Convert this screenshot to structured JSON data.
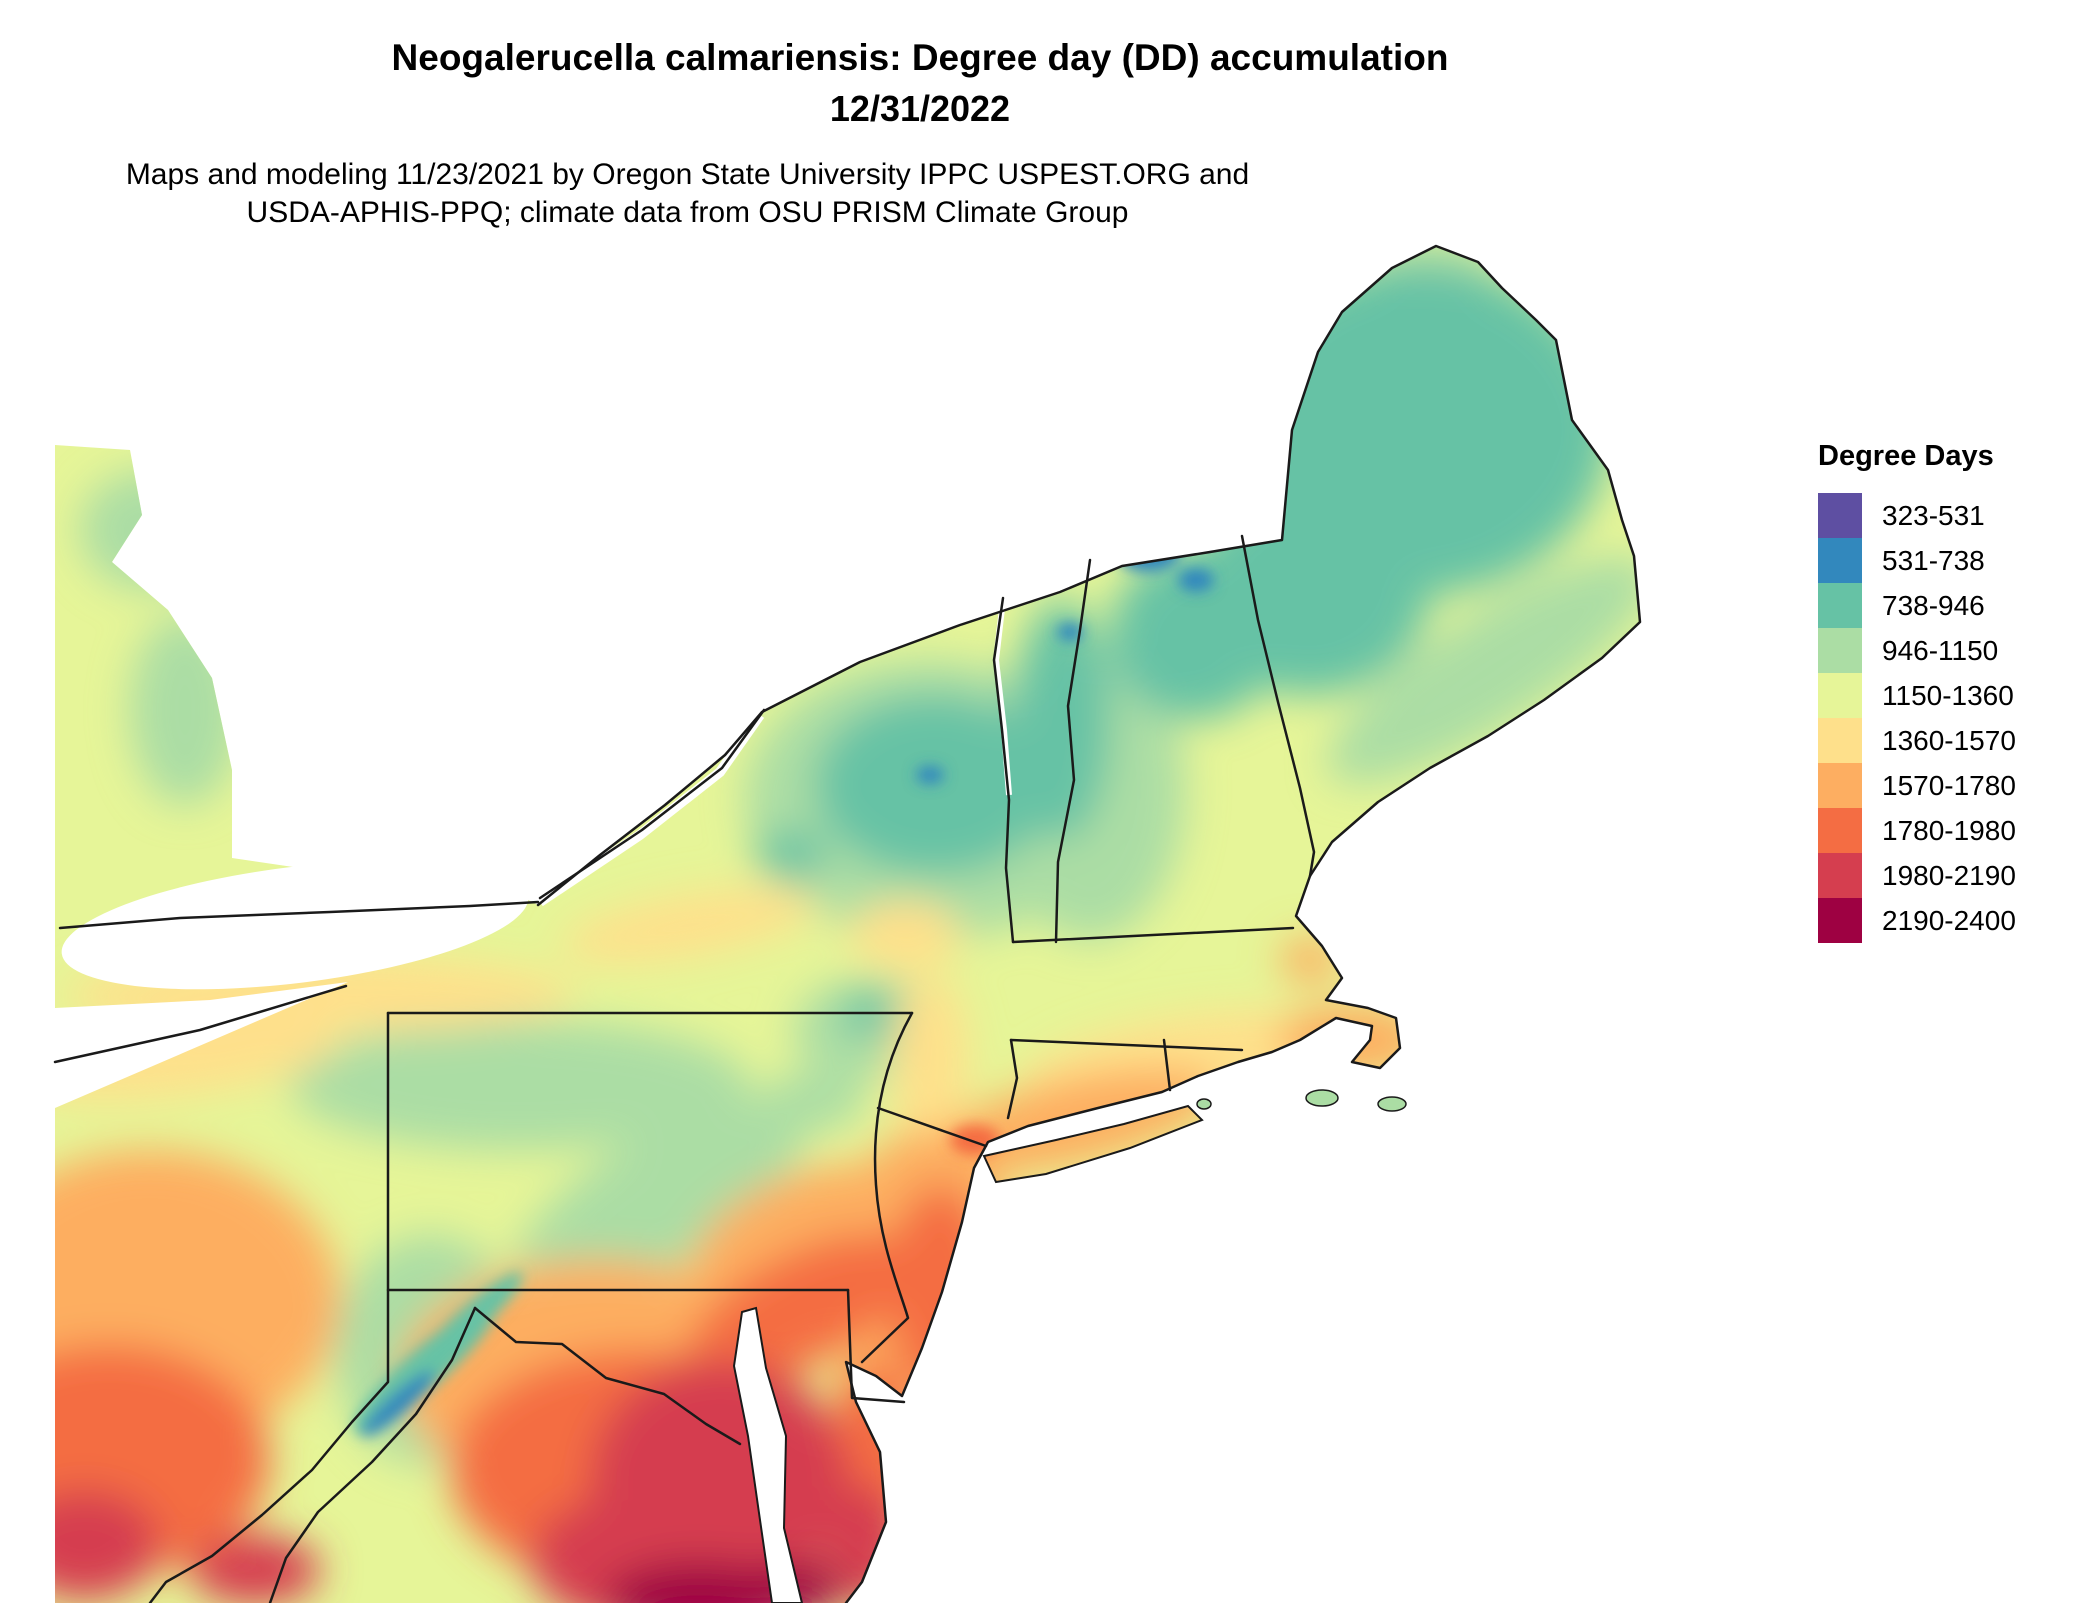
{
  "title": "Neogalerucella calmariensis: Degree day (DD) accumulation",
  "subtitle": "12/31/2022",
  "caption": {
    "line1": "Maps and modeling 11/23/2021 by Oregon State University IPPC USPEST.ORG and",
    "line2": "USDA-APHIS-PPQ; climate data from OSU PRISM Climate Group"
  },
  "legend": {
    "title": "Degree Days",
    "entries": [
      {
        "label": "323-531",
        "color": "#5e4fa2"
      },
      {
        "label": "531-738",
        "color": "#3288bd"
      },
      {
        "label": "738-946",
        "color": "#66c2a5"
      },
      {
        "label": "946-1150",
        "color": "#abdda4"
      },
      {
        "label": "1150-1360",
        "color": "#e6f598"
      },
      {
        "label": "1360-1570",
        "color": "#fee08b"
      },
      {
        "label": "1570-1780",
        "color": "#fdae61"
      },
      {
        "label": "1780-1980",
        "color": "#f46d43"
      },
      {
        "label": "1980-2190",
        "color": "#d53e4f"
      },
      {
        "label": "2190-2400",
        "color": "#9e0142"
      }
    ]
  },
  "map": {
    "region": "Northeastern United States and adjacent Canada",
    "value_range": [
      323,
      2400
    ]
  }
}
